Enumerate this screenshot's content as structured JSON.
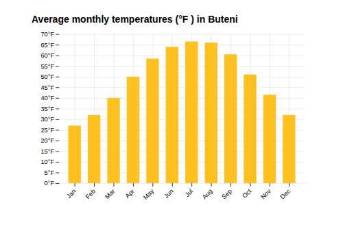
{
  "chart_data": {
    "type": "bar",
    "title": "Average monthly temperatures (°F ) in Buteni",
    "categories": [
      "Jan",
      "Feb",
      "Mar",
      "Apr",
      "May",
      "Jun",
      "Jul",
      "Aug",
      "Sep",
      "Oct",
      "Nov",
      "Dec"
    ],
    "values": [
      27.0,
      32.0,
      40.0,
      50.0,
      58.5,
      64.0,
      66.5,
      66.0,
      60.5,
      51.0,
      41.5,
      32.0
    ],
    "color": "#FFC020",
    "ylim": [
      0,
      70
    ],
    "yticks": [
      {
        "value": 0,
        "label": "0°F"
      },
      {
        "value": 5,
        "label": "5°F"
      },
      {
        "value": 10,
        "label": "10°F"
      },
      {
        "value": 15,
        "label": "15°F"
      },
      {
        "value": 20,
        "label": "20°F"
      },
      {
        "value": 25,
        "label": "25°F"
      },
      {
        "value": 30,
        "label": "30°F"
      },
      {
        "value": 35,
        "label": "35°F"
      },
      {
        "value": 40,
        "label": "40°F"
      },
      {
        "value": 45,
        "label": "45°F"
      },
      {
        "value": 50,
        "label": "50°F"
      },
      {
        "value": 55,
        "label": "55°F"
      },
      {
        "value": 60,
        "label": "60°F"
      },
      {
        "value": 65,
        "label": "65°F"
      },
      {
        "value": 70,
        "label": "70°F"
      }
    ],
    "grid": true
  }
}
